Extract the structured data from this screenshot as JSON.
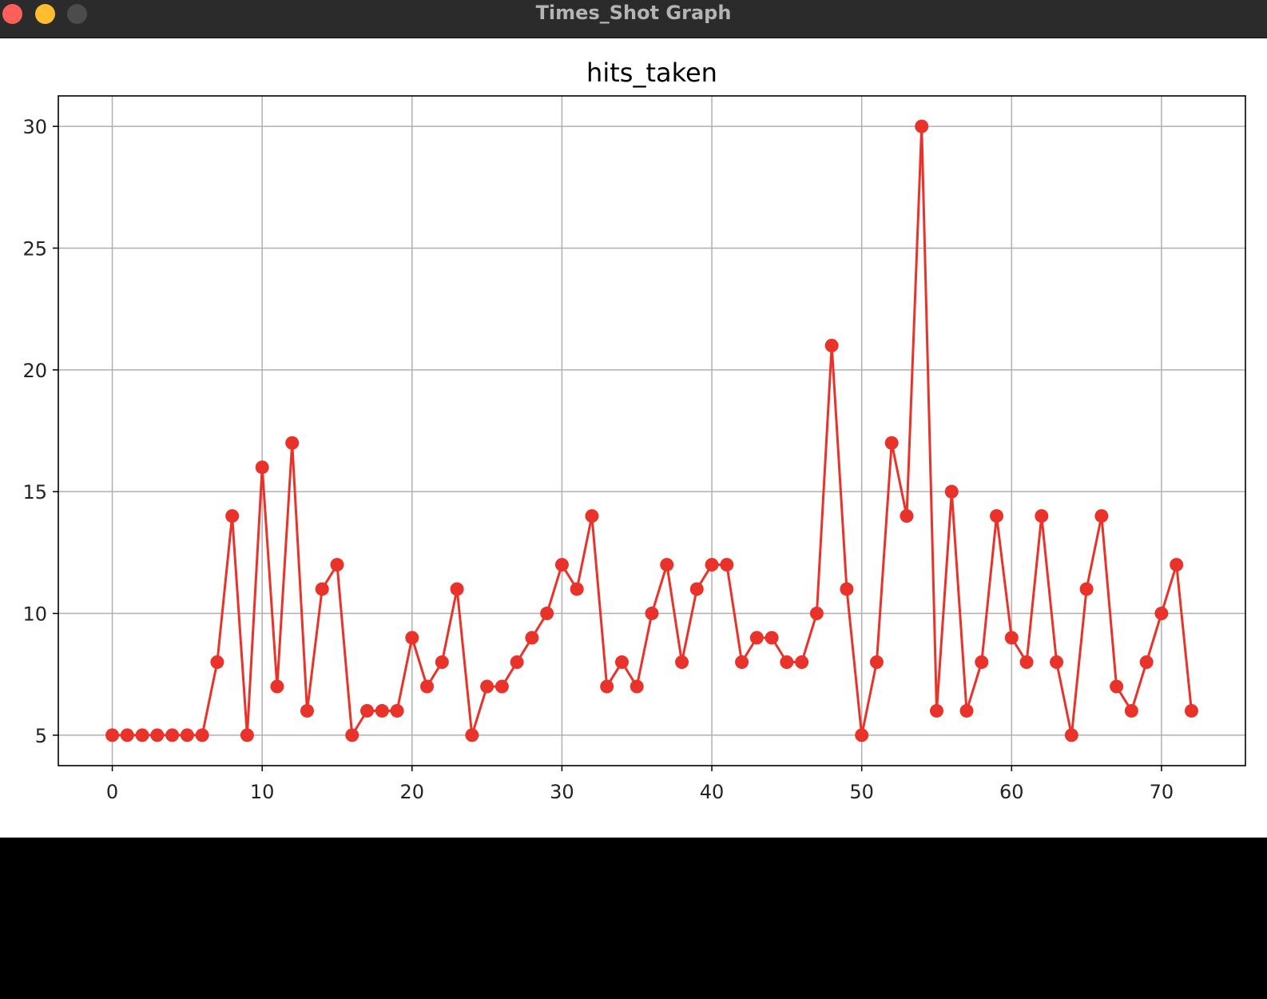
{
  "window": {
    "title": "Times_Shot Graph"
  },
  "colors": {
    "series": "#e8322a",
    "grid": "#b0b0b0",
    "axes": "#000000"
  },
  "chart_data": {
    "type": "line",
    "title": "hits_taken",
    "xlabel": "",
    "ylabel": "",
    "xlim": [
      -3.6,
      75.6
    ],
    "ylim": [
      3.75,
      31.25
    ],
    "xticks": [
      0,
      10,
      20,
      30,
      40,
      50,
      60,
      70
    ],
    "yticks": [
      5,
      10,
      15,
      20,
      25,
      30
    ],
    "grid": true,
    "marker": "circle",
    "x": [
      0,
      1,
      2,
      3,
      4,
      5,
      6,
      7,
      8,
      9,
      10,
      11,
      12,
      13,
      14,
      15,
      16,
      17,
      18,
      19,
      20,
      21,
      22,
      23,
      24,
      25,
      26,
      27,
      28,
      29,
      30,
      31,
      32,
      33,
      34,
      35,
      36,
      37,
      38,
      39,
      40,
      41,
      42,
      43,
      44,
      45,
      46,
      47,
      48,
      49,
      50,
      51,
      52,
      53,
      54,
      55,
      56,
      57,
      58,
      59,
      60,
      61,
      62,
      63,
      64,
      65,
      66,
      67,
      68,
      69,
      70,
      71,
      72
    ],
    "values": [
      5,
      5,
      5,
      5,
      5,
      5,
      5,
      8,
      14,
      5,
      16,
      7,
      17,
      6,
      11,
      12,
      5,
      6,
      6,
      6,
      9,
      7,
      8,
      11,
      5,
      7,
      7,
      8,
      9,
      10,
      12,
      11,
      14,
      7,
      8,
      7,
      10,
      12,
      8,
      11,
      12,
      12,
      8,
      9,
      9,
      8,
      8,
      10,
      21,
      11,
      5,
      8,
      17,
      14,
      30,
      6,
      15,
      6,
      8,
      14,
      9,
      8,
      14,
      8,
      5,
      11,
      14,
      7,
      6,
      8,
      10,
      12,
      6
    ]
  }
}
